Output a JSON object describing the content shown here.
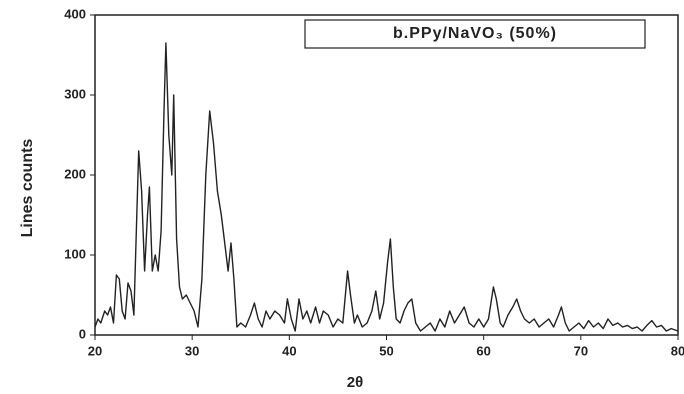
{
  "chart_data": {
    "type": "line",
    "x_label": "2θ",
    "y_label": "Lines counts",
    "x": [
      20,
      20.3,
      20.6,
      21,
      21.3,
      21.6,
      21.9,
      22.2,
      22.5,
      22.8,
      23.1,
      23.4,
      23.7,
      24,
      24.3,
      24.5,
      24.8,
      25.1,
      25.4,
      25.6,
      25.9,
      26.2,
      26.5,
      26.8,
      27.1,
      27.3,
      27.6,
      27.9,
      28.1,
      28.4,
      28.7,
      29,
      29.4,
      29.8,
      30.2,
      30.6,
      31,
      31.4,
      31.8,
      32.2,
      32.6,
      33,
      33.4,
      33.7,
      34,
      34.3,
      34.6,
      35,
      35.5,
      36,
      36.4,
      36.8,
      37.2,
      37.6,
      38,
      38.5,
      39,
      39.5,
      39.8,
      40.2,
      40.6,
      41,
      41.4,
      41.8,
      42.2,
      42.7,
      43.1,
      43.5,
      44,
      44.5,
      45,
      45.5,
      46,
      46.3,
      46.7,
      47,
      47.5,
      48,
      48.5,
      48.9,
      49.3,
      49.7,
      50.1,
      50.4,
      50.7,
      51,
      51.4,
      51.8,
      52.2,
      52.6,
      53,
      53.5,
      54,
      54.5,
      55,
      55.5,
      56,
      56.5,
      57,
      57.5,
      58,
      58.5,
      59,
      59.5,
      60,
      60.5,
      61,
      61.3,
      61.7,
      62,
      62.5,
      63,
      63.4,
      63.8,
      64.2,
      64.7,
      65.2,
      65.7,
      66.2,
      66.7,
      67.2,
      67.7,
      68,
      68.4,
      68.8,
      69.3,
      69.8,
      70.3,
      70.8,
      71.3,
      71.8,
      72.3,
      72.8,
      73.3,
      73.8,
      74.3,
      74.8,
      75.3,
      75.8,
      76.3,
      76.8,
      77.3,
      77.8,
      78.3,
      78.8,
      79.3,
      80
    ],
    "series": [
      {
        "name": "b.PPy/NaVO₃ (50%)",
        "color": "#222222",
        "values": [
          10,
          20,
          15,
          30,
          25,
          35,
          15,
          75,
          70,
          30,
          20,
          65,
          55,
          25,
          150,
          230,
          180,
          80,
          150,
          185,
          80,
          100,
          80,
          130,
          280,
          365,
          250,
          200,
          300,
          120,
          60,
          45,
          50,
          40,
          30,
          10,
          70,
          200,
          280,
          240,
          180,
          150,
          110,
          80,
          115,
          70,
          10,
          15,
          10,
          25,
          40,
          20,
          10,
          30,
          20,
          30,
          25,
          15,
          45,
          20,
          5,
          45,
          20,
          30,
          15,
          35,
          15,
          30,
          25,
          10,
          20,
          15,
          80,
          50,
          15,
          25,
          10,
          15,
          30,
          55,
          20,
          40,
          90,
          120,
          60,
          20,
          15,
          30,
          40,
          45,
          15,
          5,
          10,
          15,
          5,
          20,
          10,
          30,
          15,
          25,
          35,
          15,
          10,
          20,
          10,
          20,
          60,
          45,
          15,
          10,
          25,
          35,
          45,
          30,
          20,
          15,
          20,
          10,
          15,
          20,
          10,
          25,
          35,
          15,
          5,
          10,
          15,
          8,
          18,
          10,
          15,
          8,
          20,
          12,
          15,
          10,
          12,
          8,
          10,
          5,
          12,
          18,
          10,
          12,
          5,
          8,
          5
        ]
      }
    ],
    "xlim": [
      20,
      80
    ],
    "xticks": [
      20,
      30,
      40,
      50,
      60,
      70,
      80
    ],
    "ylim": [
      0,
      400
    ],
    "yticks": [
      0,
      100,
      200,
      300,
      400
    ]
  }
}
